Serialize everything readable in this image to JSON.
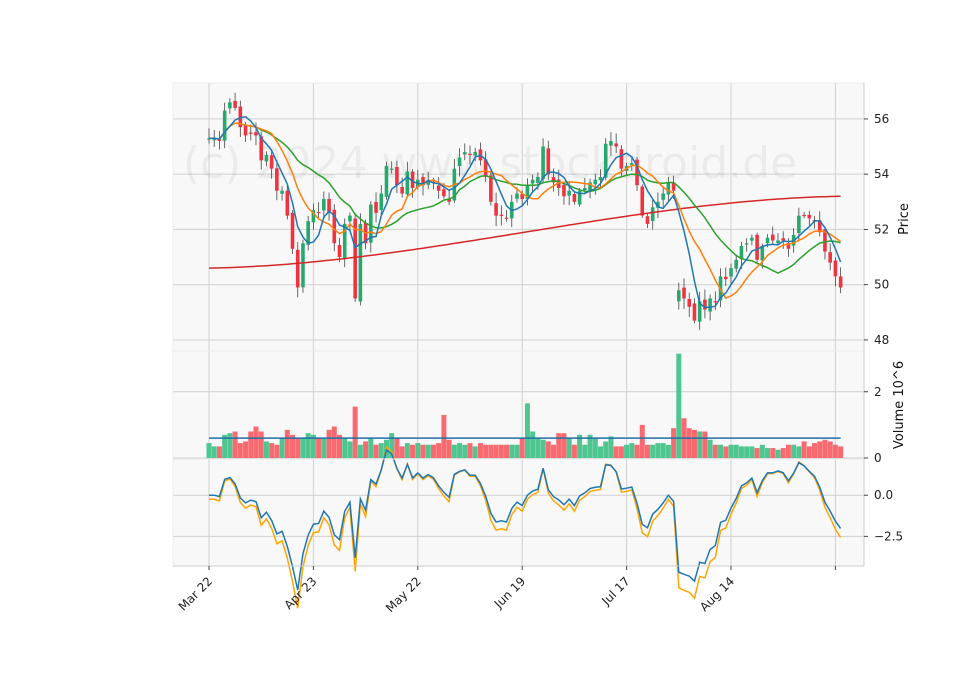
{
  "chart_data": [
    {
      "type": "candlestick",
      "panel": "price",
      "ylabel": "Price",
      "ylim": [
        47.6,
        57.3
      ],
      "yticks": [
        48,
        50,
        52,
        54,
        56
      ],
      "xticks": [
        {
          "label": "Mar 22",
          "index": 0
        },
        {
          "label": "Apr 23",
          "index": 20
        },
        {
          "label": "May 22",
          "index": 40
        },
        {
          "label": "Jun 19",
          "index": 60
        },
        {
          "label": "Jul 17",
          "index": 80
        },
        {
          "label": "Aug 14",
          "index": 100
        },
        {
          "label": "",
          "index": 120
        }
      ],
      "watermark": "(c) 2024 www.stockdroid.de",
      "colors": {
        "up": "#26a96c",
        "down": "#ef3340",
        "ma_fast": "#1f77b4",
        "ma_mid": "#ff7f0e",
        "ma_slow": "#2ca02c",
        "ma_long": "#d62728"
      },
      "close": [
        55.3,
        55.3,
        55.2,
        56.3,
        56.6,
        56.4,
        55.7,
        55.4,
        55.5,
        55.4,
        54.5,
        54.7,
        54.2,
        53.4,
        53.4,
        52.5,
        51.3,
        49.9,
        51.5,
        52.3,
        52.7,
        52.6,
        53.1,
        52.6,
        51.5,
        51.0,
        52.2,
        52.5,
        49.5,
        52.2,
        51.5,
        52.9,
        52.6,
        53.3,
        54.3,
        54.2,
        53.6,
        53.3,
        54.1,
        53.5,
        53.8,
        53.6,
        53.8,
        53.7,
        53.4,
        53.2,
        53.0,
        54.2,
        54.6,
        54.8,
        54.7,
        54.8,
        54.5,
        53.9,
        53.0,
        52.5,
        52.5,
        52.4,
        53.0,
        53.3,
        53.1,
        53.6,
        53.8,
        53.9,
        55.0,
        54.0,
        53.7,
        53.5,
        53.2,
        53.4,
        53.0,
        53.4,
        53.5,
        53.7,
        53.8,
        53.9,
        55.1,
        55.2,
        55.0,
        54.2,
        54.3,
        54.4,
        53.6,
        52.5,
        52.2,
        52.8,
        53.0,
        53.3,
        53.7,
        53.4,
        49.8,
        49.5,
        49.2,
        48.7,
        49.4,
        49.1,
        49.5,
        49.4,
        50.3,
        50.2,
        50.6,
        50.9,
        51.4,
        51.5,
        51.7,
        50.9,
        51.4,
        51.7,
        51.6,
        51.6,
        51.6,
        51.3,
        51.8,
        52.5,
        52.5,
        52.4,
        52.3,
        51.9,
        51.2,
        50.8,
        50.3,
        49.9
      ],
      "volume_panel": {
        "ylabel": "Volume  10^6",
        "ylim": [
          0,
          3.2
        ],
        "yticks": [
          0,
          2
        ],
        "values": [
          0.45,
          0.35,
          0.35,
          0.7,
          0.75,
          0.8,
          0.45,
          0.5,
          0.8,
          0.95,
          0.8,
          0.5,
          0.45,
          0.4,
          0.6,
          0.85,
          0.7,
          0.6,
          0.6,
          0.75,
          0.7,
          0.6,
          0.6,
          0.85,
          0.95,
          0.7,
          0.6,
          0.5,
          1.55,
          0.4,
          0.5,
          0.6,
          0.4,
          0.45,
          0.55,
          0.75,
          0.6,
          0.35,
          0.45,
          0.4,
          0.45,
          0.4,
          0.4,
          0.4,
          0.45,
          1.3,
          0.55,
          0.4,
          0.45,
          0.4,
          0.45,
          0.35,
          0.45,
          0.4,
          0.4,
          0.4,
          0.4,
          0.4,
          0.4,
          0.4,
          0.6,
          1.65,
          0.8,
          0.6,
          0.55,
          0.5,
          0.4,
          0.75,
          0.75,
          0.6,
          0.4,
          0.7,
          0.4,
          0.7,
          0.6,
          0.35,
          0.5,
          0.65,
          0.35,
          0.35,
          0.4,
          0.45,
          0.4,
          1.0,
          0.4,
          0.4,
          0.45,
          0.45,
          0.4,
          0.9,
          3.15,
          1.2,
          0.9,
          0.85,
          0.8,
          0.8,
          0.55,
          0.4,
          0.4,
          0.35,
          0.4,
          0.4,
          0.35,
          0.35,
          0.35,
          0.3,
          0.4,
          0.3,
          0.3,
          0.25,
          0.3,
          0.4,
          0.4,
          0.35,
          0.5,
          0.35,
          0.45,
          0.5,
          0.55,
          0.5,
          0.4,
          0.35
        ],
        "avg_value": 0.6
      },
      "indicator_panel": {
        "yticks": [
          -2.5,
          0.0
        ],
        "ylim": [
          -4.3,
          2.2
        ],
        "tick_labels": [
          "−2.5",
          "0.0"
        ],
        "colors": {
          "line1": "#1f77b4",
          "line2": "#ffa500"
        }
      }
    }
  ]
}
